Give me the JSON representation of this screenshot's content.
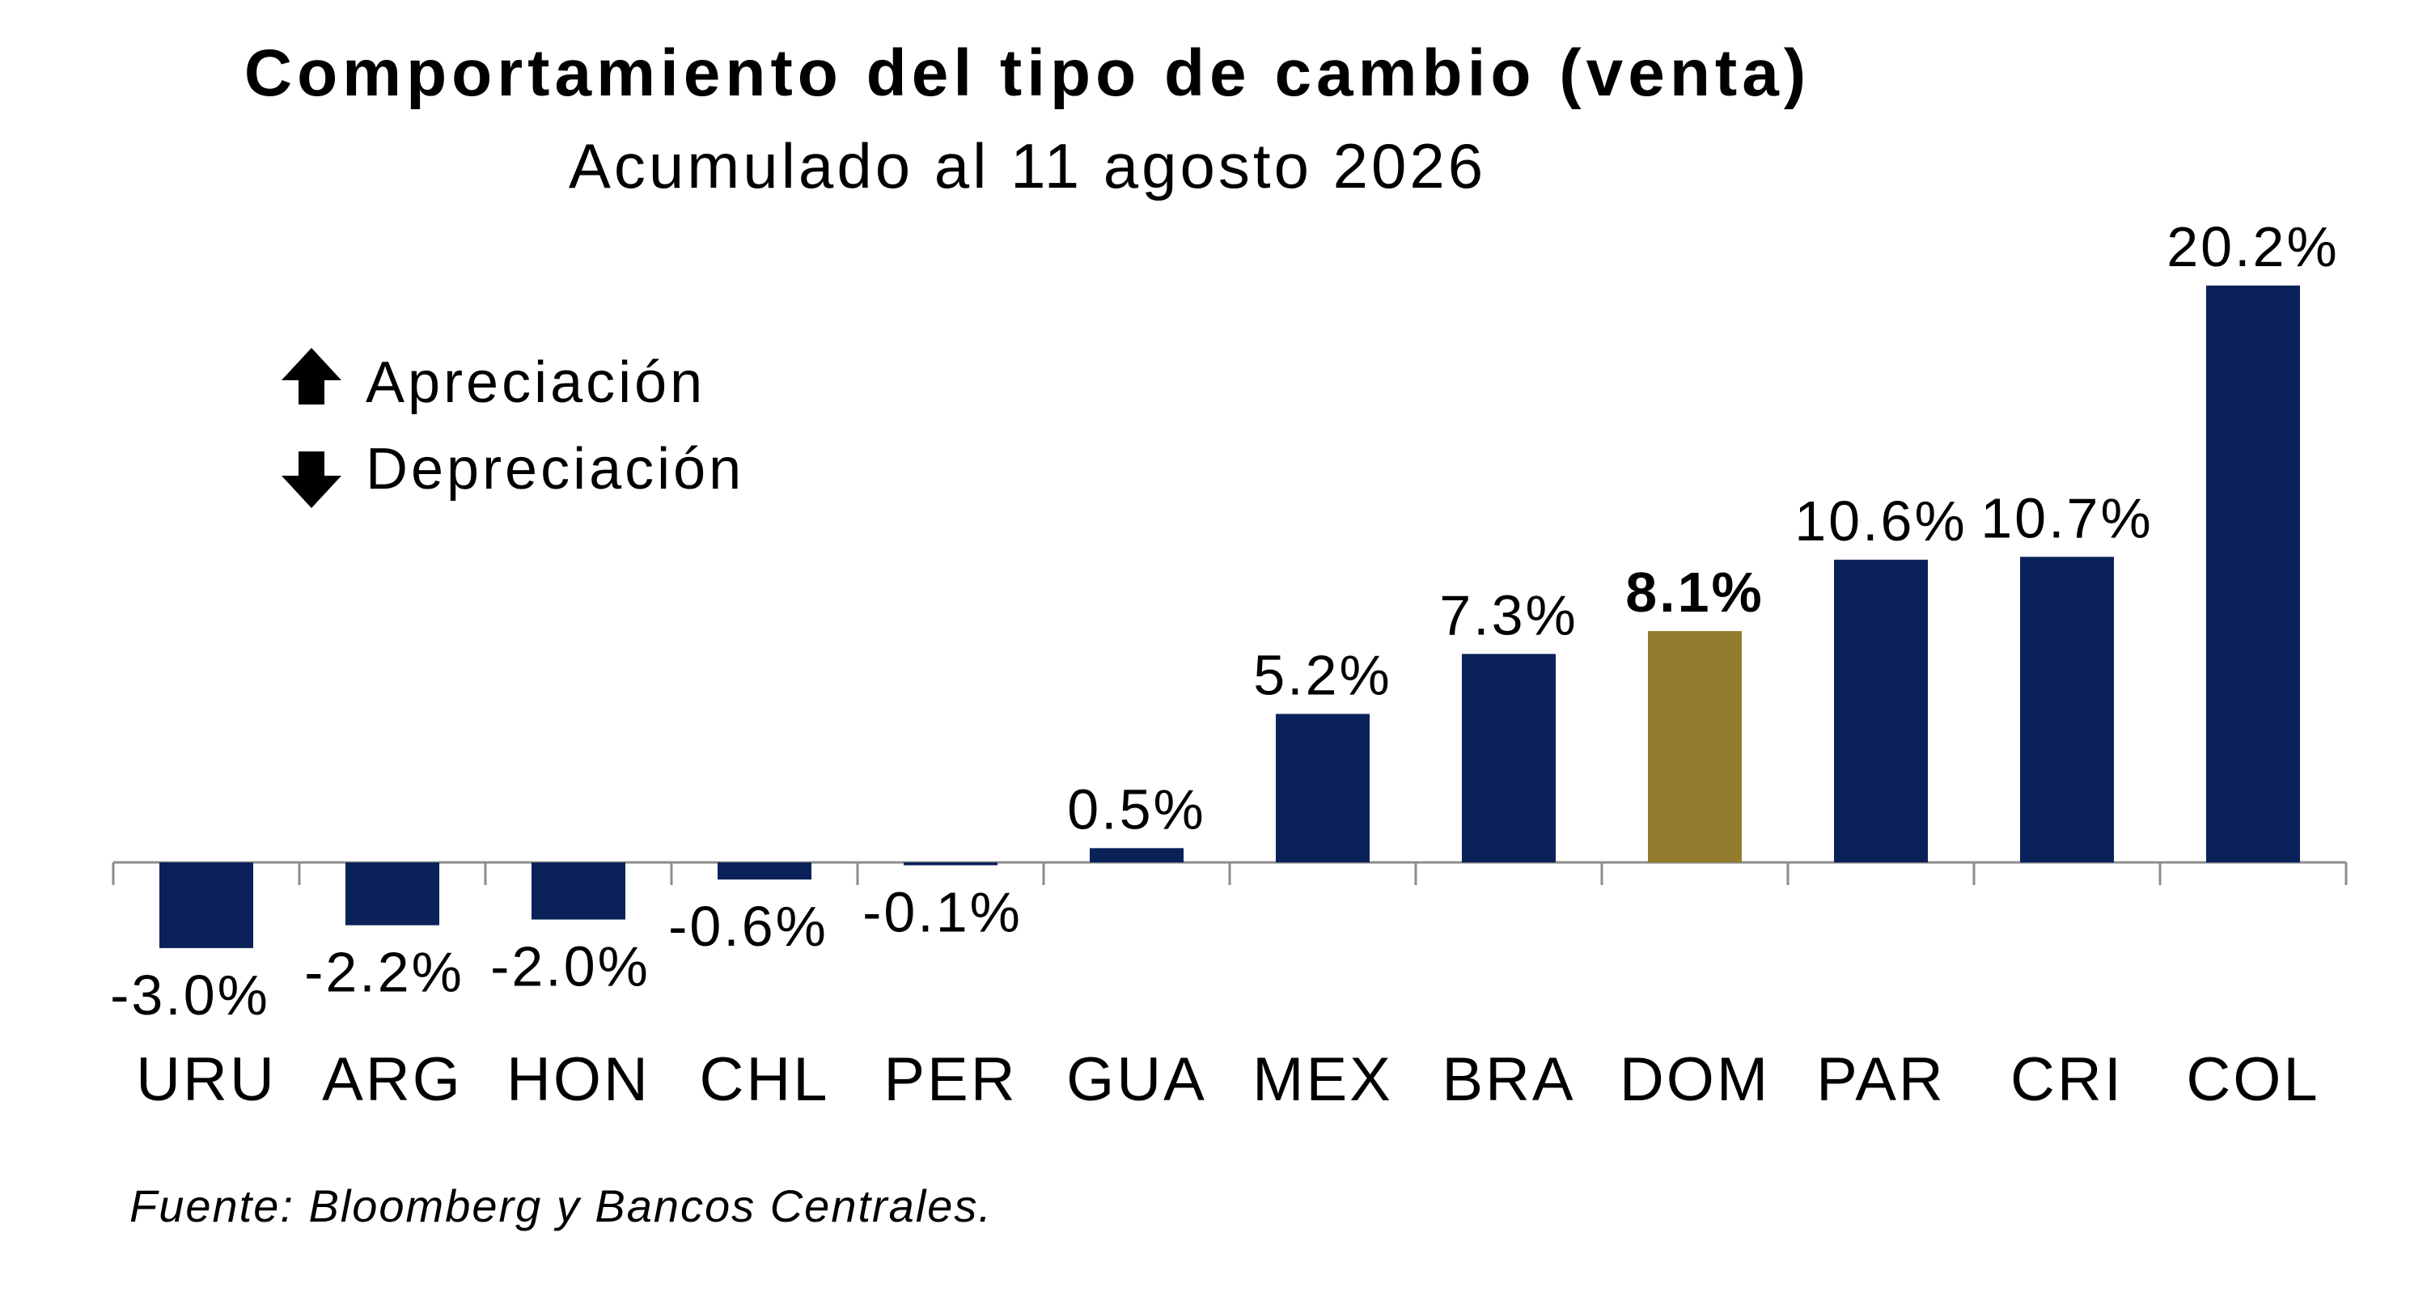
{
  "chart_data": {
    "type": "bar",
    "title": "Comportamiento del tipo de cambio (venta)",
    "subtitle": "Acumulado al 11 agosto 2026",
    "categories": [
      "URU",
      "ARG",
      "HON",
      "CHL",
      "PER",
      "GUA",
      "MEX",
      "BRA",
      "DOM",
      "PAR",
      "CRI",
      "COL"
    ],
    "values": [
      -3.0,
      -2.2,
      -2.0,
      -0.6,
      -0.1,
      0.5,
      5.2,
      7.3,
      8.1,
      10.6,
      10.7,
      20.2
    ],
    "value_labels": [
      "-3.0%",
      "-2.2%",
      "-2.0%",
      "-0.6%",
      "-0.1%",
      "0.5%",
      "5.2%",
      "7.3%",
      "8.1%",
      "10.6%",
      "10.7%",
      "20.2%"
    ],
    "highlight_category": "DOM",
    "grid": false,
    "legend": {
      "placement": "top-left",
      "items": [
        {
          "label": "Apreciación",
          "icon": "arrow-up-icon"
        },
        {
          "label": "Depreciación",
          "icon": "arrow-down-icon"
        }
      ]
    },
    "colors": {
      "bar": "#0b2159",
      "highlight": "#947c2e",
      "axis": "#8c8c8c"
    }
  },
  "source": "Fuente: Bloomberg y Bancos Centrales."
}
